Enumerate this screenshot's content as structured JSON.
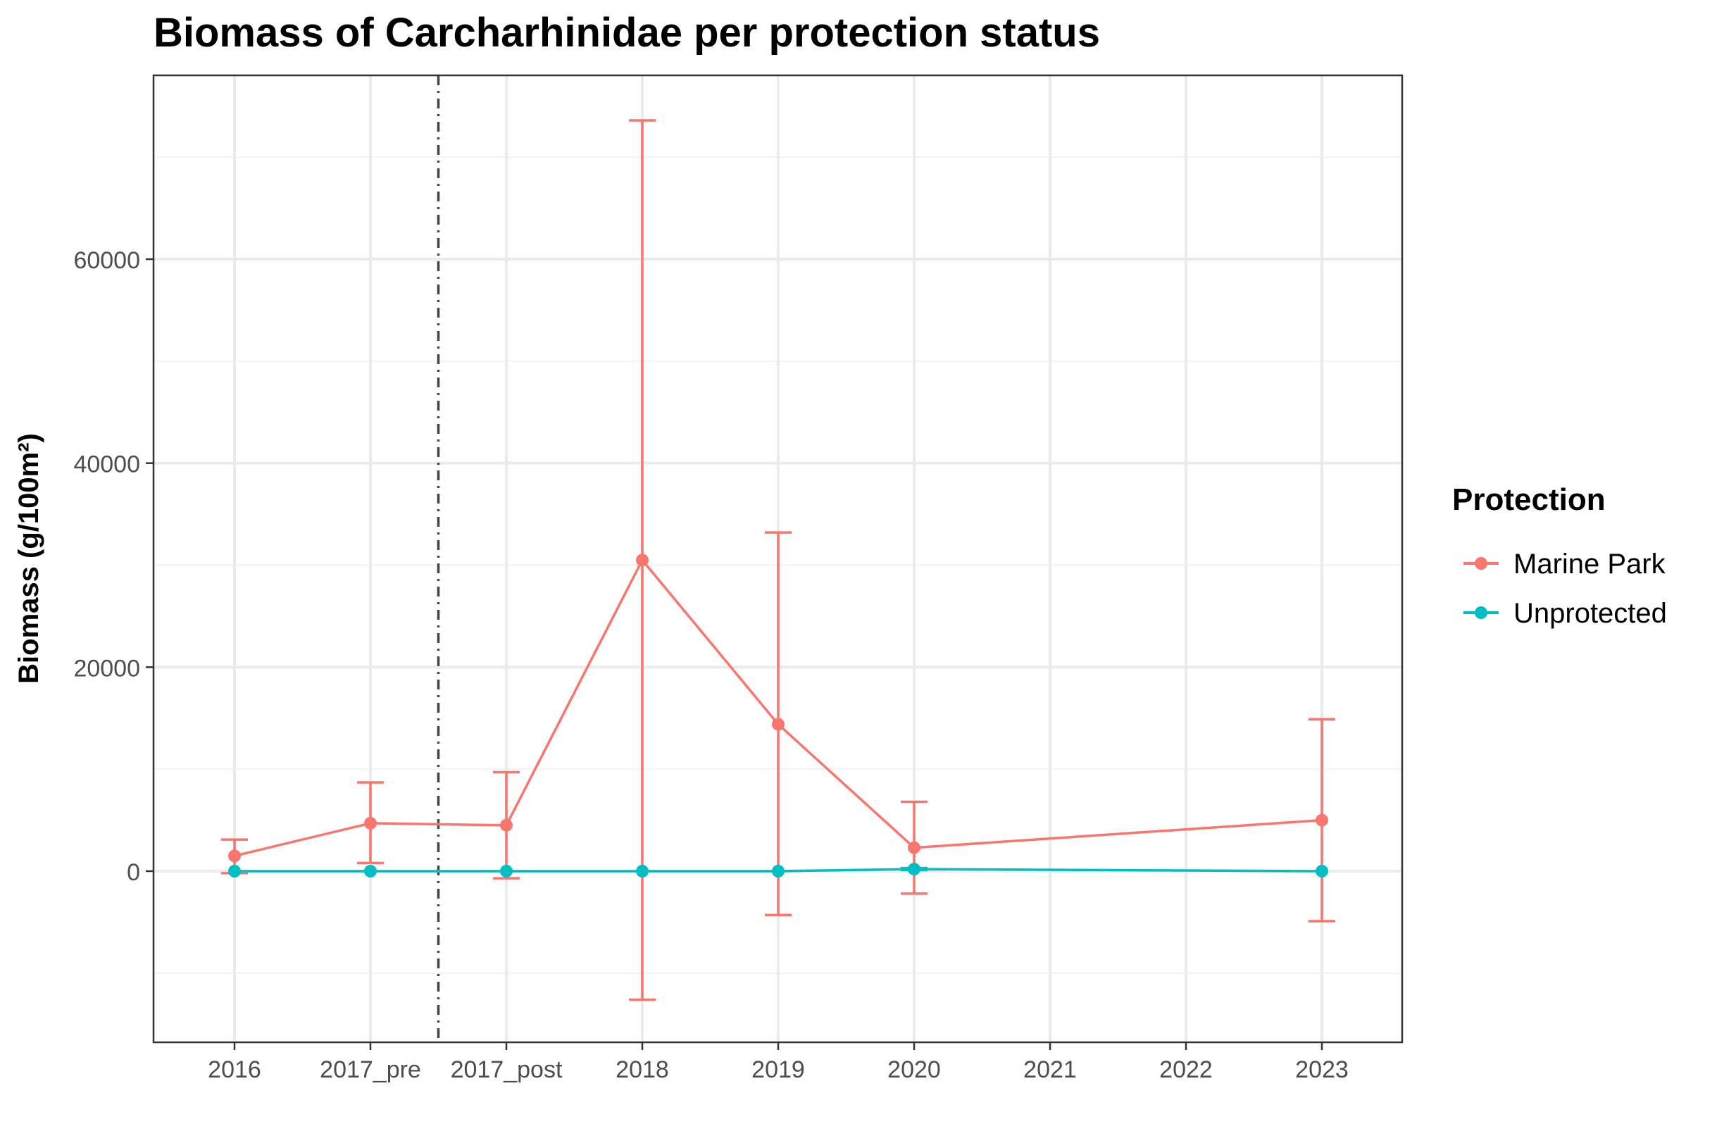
{
  "chart_data": {
    "type": "line",
    "title": "Biomass of Carcharhinidae per protection status",
    "xlabel": "",
    "ylabel": "Biomass (g/100m²)",
    "categories": [
      "2016",
      "2017_pre",
      "2017_post",
      "2018",
      "2019",
      "2020",
      "2021",
      "2022",
      "2023"
    ],
    "y_ticks": [
      0,
      20000,
      40000,
      60000
    ],
    "y_tick_labels": [
      "0",
      "20000",
      "40000",
      "60000"
    ],
    "ylim": [
      -16500,
      78500
    ],
    "grid": true,
    "vline": {
      "between": [
        "2017_pre",
        "2017_post"
      ],
      "style": "dashdot"
    },
    "legend": {
      "title": "Protection",
      "position": "right"
    },
    "series": [
      {
        "name": "Marine Park",
        "color": "#F8766D",
        "points": [
          {
            "x": "2016",
            "y": 1500,
            "lower": -200,
            "upper": 3100
          },
          {
            "x": "2017_pre",
            "y": 4700,
            "lower": 800,
            "upper": 8700
          },
          {
            "x": "2017_post",
            "y": 4500,
            "lower": -700,
            "upper": 9700
          },
          {
            "x": "2018",
            "y": 30500,
            "lower": -12600,
            "upper": 73600
          },
          {
            "x": "2019",
            "y": 14400,
            "lower": -4300,
            "upper": 33200
          },
          {
            "x": "2020",
            "y": 2300,
            "lower": -2200,
            "upper": 6800
          },
          {
            "x": "2023",
            "y": 5000,
            "lower": -4900,
            "upper": 14900
          }
        ]
      },
      {
        "name": "Unprotected",
        "color": "#00BFC4",
        "points": [
          {
            "x": "2016",
            "y": 0,
            "lower": 0,
            "upper": 0
          },
          {
            "x": "2017_pre",
            "y": 0,
            "lower": 0,
            "upper": 0
          },
          {
            "x": "2017_post",
            "y": 0,
            "lower": 0,
            "upper": 0
          },
          {
            "x": "2018",
            "y": 0,
            "lower": 0,
            "upper": 0
          },
          {
            "x": "2019",
            "y": 0,
            "lower": 0,
            "upper": 0
          },
          {
            "x": "2020",
            "y": 200,
            "lower": 100,
            "upper": 300
          },
          {
            "x": "2023",
            "y": 0,
            "lower": 0,
            "upper": 0
          }
        ]
      }
    ]
  }
}
